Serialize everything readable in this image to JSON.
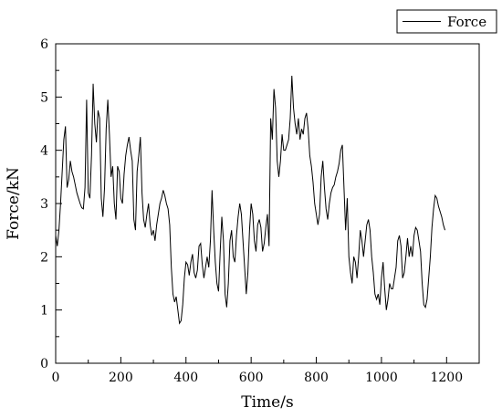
{
  "chart_data": {
    "type": "line",
    "title": "",
    "xlabel": "Time/s",
    "ylabel": "Force/kN",
    "xlim": [
      0,
      1300
    ],
    "ylim": [
      0,
      6
    ],
    "xticks": [
      0,
      200,
      400,
      600,
      800,
      1000,
      1200
    ],
    "yticks": [
      0,
      1,
      2,
      3,
      4,
      5,
      6
    ],
    "grid": false,
    "legend": {
      "position": "top-right",
      "entries": [
        "Force"
      ]
    },
    "series": [
      {
        "name": "Force",
        "color": "#000000",
        "points": [
          [
            0,
            2.4
          ],
          [
            5,
            2.2
          ],
          [
            10,
            2.5
          ],
          [
            15,
            3.0
          ],
          [
            20,
            3.6
          ],
          [
            25,
            4.2
          ],
          [
            30,
            4.45
          ],
          [
            35,
            3.3
          ],
          [
            40,
            3.45
          ],
          [
            45,
            3.8
          ],
          [
            50,
            3.6
          ],
          [
            55,
            3.5
          ],
          [
            60,
            3.35
          ],
          [
            65,
            3.2
          ],
          [
            70,
            3.1
          ],
          [
            75,
            3.0
          ],
          [
            80,
            2.92
          ],
          [
            85,
            2.9
          ],
          [
            90,
            3.3
          ],
          [
            95,
            4.95
          ],
          [
            100,
            3.2
          ],
          [
            105,
            3.1
          ],
          [
            110,
            3.9
          ],
          [
            115,
            5.25
          ],
          [
            120,
            4.5
          ],
          [
            125,
            4.15
          ],
          [
            130,
            4.75
          ],
          [
            135,
            4.6
          ],
          [
            140,
            3.1
          ],
          [
            145,
            2.75
          ],
          [
            150,
            3.3
          ],
          [
            155,
            4.4
          ],
          [
            160,
            4.95
          ],
          [
            165,
            4.3
          ],
          [
            170,
            3.5
          ],
          [
            175,
            3.7
          ],
          [
            180,
            3.0
          ],
          [
            185,
            2.7
          ],
          [
            190,
            3.7
          ],
          [
            195,
            3.6
          ],
          [
            200,
            3.1
          ],
          [
            205,
            3.0
          ],
          [
            210,
            3.55
          ],
          [
            215,
            3.9
          ],
          [
            220,
            4.1
          ],
          [
            225,
            4.25
          ],
          [
            230,
            4.0
          ],
          [
            235,
            3.8
          ],
          [
            240,
            2.7
          ],
          [
            245,
            2.5
          ],
          [
            250,
            3.6
          ],
          [
            255,
            3.9
          ],
          [
            260,
            4.25
          ],
          [
            265,
            3.2
          ],
          [
            270,
            2.7
          ],
          [
            275,
            2.55
          ],
          [
            280,
            2.8
          ],
          [
            285,
            3.0
          ],
          [
            290,
            2.6
          ],
          [
            295,
            2.4
          ],
          [
            300,
            2.5
          ],
          [
            305,
            2.3
          ],
          [
            310,
            2.6
          ],
          [
            315,
            2.8
          ],
          [
            320,
            3.0
          ],
          [
            325,
            3.1
          ],
          [
            330,
            3.25
          ],
          [
            335,
            3.15
          ],
          [
            340,
            3.0
          ],
          [
            345,
            2.9
          ],
          [
            350,
            2.6
          ],
          [
            355,
            1.8
          ],
          [
            360,
            1.3
          ],
          [
            365,
            1.15
          ],
          [
            370,
            1.25
          ],
          [
            375,
            1.0
          ],
          [
            380,
            0.75
          ],
          [
            385,
            0.8
          ],
          [
            390,
            1.1
          ],
          [
            395,
            1.6
          ],
          [
            400,
            1.9
          ],
          [
            405,
            1.85
          ],
          [
            410,
            1.65
          ],
          [
            415,
            1.9
          ],
          [
            420,
            2.05
          ],
          [
            425,
            1.7
          ],
          [
            430,
            1.6
          ],
          [
            435,
            1.75
          ],
          [
            440,
            2.2
          ],
          [
            445,
            2.25
          ],
          [
            450,
            1.85
          ],
          [
            455,
            1.6
          ],
          [
            460,
            1.8
          ],
          [
            465,
            2.0
          ],
          [
            470,
            1.8
          ],
          [
            475,
            2.3
          ],
          [
            480,
            3.25
          ],
          [
            485,
            2.5
          ],
          [
            490,
            1.9
          ],
          [
            495,
            1.5
          ],
          [
            500,
            1.35
          ],
          [
            505,
            2.1
          ],
          [
            510,
            2.75
          ],
          [
            515,
            2.3
          ],
          [
            520,
            1.3
          ],
          [
            525,
            1.05
          ],
          [
            530,
            1.5
          ],
          [
            535,
            2.3
          ],
          [
            540,
            2.5
          ],
          [
            545,
            2.0
          ],
          [
            550,
            1.9
          ],
          [
            555,
            2.4
          ],
          [
            560,
            2.75
          ],
          [
            565,
            3.0
          ],
          [
            570,
            2.8
          ],
          [
            575,
            2.3
          ],
          [
            580,
            1.8
          ],
          [
            585,
            1.3
          ],
          [
            590,
            1.7
          ],
          [
            595,
            2.5
          ],
          [
            600,
            3.0
          ],
          [
            605,
            2.8
          ],
          [
            610,
            2.3
          ],
          [
            615,
            2.1
          ],
          [
            620,
            2.6
          ],
          [
            625,
            2.7
          ],
          [
            630,
            2.55
          ],
          [
            635,
            2.1
          ],
          [
            640,
            2.25
          ],
          [
            645,
            2.55
          ],
          [
            650,
            2.8
          ],
          [
            655,
            2.2
          ],
          [
            660,
            4.6
          ],
          [
            665,
            4.2
          ],
          [
            670,
            5.15
          ],
          [
            675,
            4.8
          ],
          [
            680,
            3.8
          ],
          [
            685,
            3.5
          ],
          [
            690,
            3.8
          ],
          [
            695,
            4.3
          ],
          [
            700,
            4.0
          ],
          [
            705,
            4.0
          ],
          [
            710,
            4.1
          ],
          [
            715,
            4.2
          ],
          [
            720,
            4.6
          ],
          [
            725,
            5.4
          ],
          [
            730,
            4.8
          ],
          [
            735,
            4.5
          ],
          [
            740,
            4.3
          ],
          [
            745,
            4.6
          ],
          [
            750,
            4.2
          ],
          [
            755,
            4.4
          ],
          [
            760,
            4.3
          ],
          [
            765,
            4.6
          ],
          [
            770,
            4.7
          ],
          [
            775,
            4.4
          ],
          [
            780,
            3.9
          ],
          [
            785,
            3.7
          ],
          [
            790,
            3.4
          ],
          [
            795,
            3.0
          ],
          [
            800,
            2.8
          ],
          [
            805,
            2.6
          ],
          [
            810,
            2.8
          ],
          [
            815,
            3.5
          ],
          [
            820,
            3.8
          ],
          [
            825,
            3.3
          ],
          [
            830,
            2.9
          ],
          [
            835,
            2.7
          ],
          [
            840,
            3.0
          ],
          [
            845,
            3.2
          ],
          [
            850,
            3.3
          ],
          [
            855,
            3.35
          ],
          [
            860,
            3.5
          ],
          [
            865,
            3.6
          ],
          [
            870,
            3.75
          ],
          [
            875,
            4.0
          ],
          [
            880,
            4.1
          ],
          [
            885,
            3.3
          ],
          [
            890,
            2.5
          ],
          [
            895,
            3.1
          ],
          [
            900,
            2.0
          ],
          [
            905,
            1.7
          ],
          [
            910,
            1.5
          ],
          [
            915,
            2.0
          ],
          [
            920,
            1.9
          ],
          [
            925,
            1.6
          ],
          [
            930,
            2.0
          ],
          [
            935,
            2.5
          ],
          [
            940,
            2.3
          ],
          [
            945,
            2.0
          ],
          [
            950,
            2.3
          ],
          [
            955,
            2.6
          ],
          [
            960,
            2.7
          ],
          [
            965,
            2.5
          ],
          [
            970,
            2.0
          ],
          [
            975,
            1.7
          ],
          [
            980,
            1.3
          ],
          [
            985,
            1.2
          ],
          [
            990,
            1.3
          ],
          [
            995,
            1.1
          ],
          [
            1000,
            1.6
          ],
          [
            1005,
            1.9
          ],
          [
            1010,
            1.4
          ],
          [
            1015,
            1.0
          ],
          [
            1020,
            1.2
          ],
          [
            1025,
            1.5
          ],
          [
            1030,
            1.4
          ],
          [
            1035,
            1.4
          ],
          [
            1040,
            1.6
          ],
          [
            1045,
            1.8
          ],
          [
            1050,
            2.3
          ],
          [
            1055,
            2.4
          ],
          [
            1060,
            2.2
          ],
          [
            1065,
            1.6
          ],
          [
            1070,
            1.7
          ],
          [
            1075,
            2.0
          ],
          [
            1080,
            2.35
          ],
          [
            1085,
            2.0
          ],
          [
            1090,
            2.2
          ],
          [
            1095,
            2.0
          ],
          [
            1100,
            2.4
          ],
          [
            1105,
            2.55
          ],
          [
            1110,
            2.5
          ],
          [
            1115,
            2.3
          ],
          [
            1120,
            2.1
          ],
          [
            1125,
            1.5
          ],
          [
            1130,
            1.1
          ],
          [
            1135,
            1.05
          ],
          [
            1140,
            1.2
          ],
          [
            1145,
            1.6
          ],
          [
            1150,
            2.0
          ],
          [
            1155,
            2.55
          ],
          [
            1160,
            2.9
          ],
          [
            1165,
            3.15
          ],
          [
            1170,
            3.1
          ],
          [
            1175,
            2.95
          ],
          [
            1180,
            2.85
          ],
          [
            1185,
            2.75
          ],
          [
            1190,
            2.6
          ],
          [
            1195,
            2.5
          ]
        ]
      }
    ]
  }
}
